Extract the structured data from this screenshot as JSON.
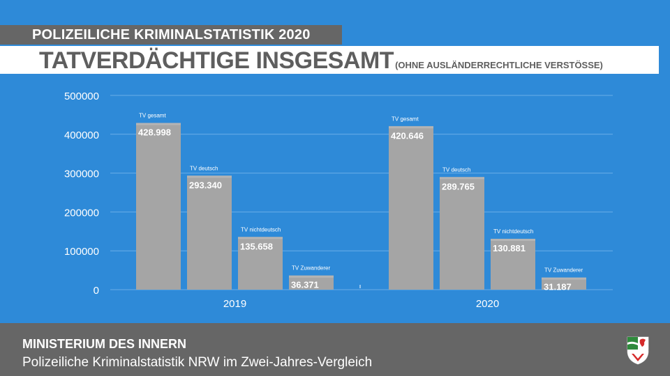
{
  "header": {
    "badge": "POLIZEILICHE KRIMINALSTATISTIK 2020",
    "title": "TATVERDÄCHTIGE INSGESAMT",
    "subtitle": "(OHNE AUSLÄNDERRECHTLICHE VERSTÖSSE)"
  },
  "chart_data": {
    "type": "bar",
    "categories": [
      "2019",
      "2020"
    ],
    "series": [
      {
        "name": "TV gesamt",
        "values": [
          428998,
          420646
        ],
        "labels": [
          "428.998",
          "420.646"
        ]
      },
      {
        "name": "TV deutsch",
        "values": [
          293340,
          289765
        ],
        "labels": [
          "293.340",
          "289.765"
        ]
      },
      {
        "name": "TV nichtdeutsch",
        "values": [
          135658,
          130881
        ],
        "labels": [
          "135.658",
          "130.881"
        ]
      },
      {
        "name": "TV Zuwanderer",
        "values": [
          36371,
          31187
        ],
        "labels": [
          "36.371",
          "31.187"
        ]
      }
    ],
    "yticks": [
      "0",
      "100000",
      "200000",
      "300000",
      "400000",
      "500000"
    ],
    "ylim": [
      0,
      500000
    ],
    "grid": true,
    "colors": {
      "bar": "#a5a5a5",
      "bar_top": "#b4b4b4",
      "grid": "#6aaee8",
      "axis_text": "#ffffff"
    }
  },
  "footer": {
    "title": "MINISTERIUM DES INNERN",
    "subtitle": "Polizeiliche Kriminalstatistik NRW im Zwei-Jahres-Vergleich"
  },
  "logo": {
    "icon": "nrw-coat-of-arms-icon"
  }
}
